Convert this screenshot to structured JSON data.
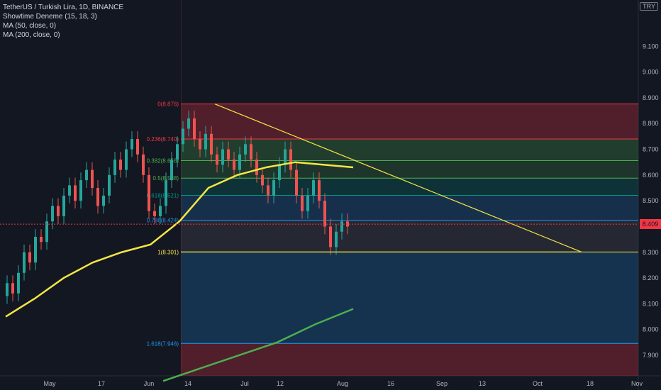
{
  "legend": {
    "symbol": "TetherUS / Turkish Lira, 1D, BINANCE",
    "ind1": "Showtime Deneme (15, 18, 3)",
    "ind2": "MA (50, close, 0)",
    "ind3": "MA (200, close, 0)"
  },
  "currency": "TRY",
  "last_price": "8.409",
  "colors": {
    "bg": "#131722",
    "up": "#26a69a",
    "down": "#ef5350",
    "ma50": "#f5e642",
    "ma200": "#4caf50",
    "trend": "#f5e642"
  },
  "chart_data": {
    "type": "candlestick",
    "y_axis": {
      "ticks": [
        "9.100",
        "9.000",
        "8.900",
        "8.800",
        "8.700",
        "8.600",
        "8.500",
        "8.400",
        "8.300",
        "8.200",
        "8.100",
        "8.000",
        "7.900"
      ],
      "range": [
        7.82,
        9.28
      ]
    },
    "x_axis": {
      "ticks": [
        "May",
        "17",
        "Jun",
        "14",
        "Jul",
        "12",
        "Aug",
        "16",
        "Sep",
        "13",
        "Oct",
        "18",
        "Nov"
      ]
    },
    "fib_levels": [
      {
        "label": "0(8.876)",
        "value": 8.876
      },
      {
        "label": "0.236(8.740)",
        "value": 8.74
      },
      {
        "label": "0.382(8.656)",
        "value": 8.656
      },
      {
        "label": "0.5(8.588)",
        "value": 8.588
      },
      {
        "label": "0.618(8.521)",
        "value": 8.521
      },
      {
        "label": "0.786(8.424)",
        "value": 8.424
      },
      {
        "label": "1(8.301)",
        "value": 8.301
      },
      {
        "label": "1.618(7.946)",
        "value": 7.946
      }
    ],
    "ma50": [
      8.05,
      8.12,
      8.2,
      8.26,
      8.3,
      8.33,
      8.42,
      8.55,
      8.6,
      8.63,
      8.65,
      8.64,
      8.63
    ],
    "ma200": [
      7.8,
      7.85,
      7.9,
      7.95,
      8.02,
      8.08
    ],
    "candles_close": [
      8.18,
      8.14,
      8.22,
      8.3,
      8.26,
      8.36,
      8.34,
      8.42,
      8.48,
      8.44,
      8.52,
      8.56,
      8.5,
      8.58,
      8.62,
      8.55,
      8.48,
      8.52,
      8.6,
      8.66,
      8.62,
      8.7,
      8.74,
      8.68,
      8.6,
      8.46,
      8.44,
      8.48,
      8.58,
      8.66,
      8.72,
      8.78,
      8.82,
      8.74,
      8.7,
      8.76,
      8.68,
      8.64,
      8.7,
      8.66,
      8.62,
      8.68,
      8.72,
      8.66,
      8.6,
      8.56,
      8.52,
      8.58,
      8.64,
      8.7,
      8.62,
      8.52,
      8.46,
      8.52,
      8.58,
      8.5,
      8.4,
      8.32,
      8.38,
      8.42,
      8.4
    ]
  }
}
